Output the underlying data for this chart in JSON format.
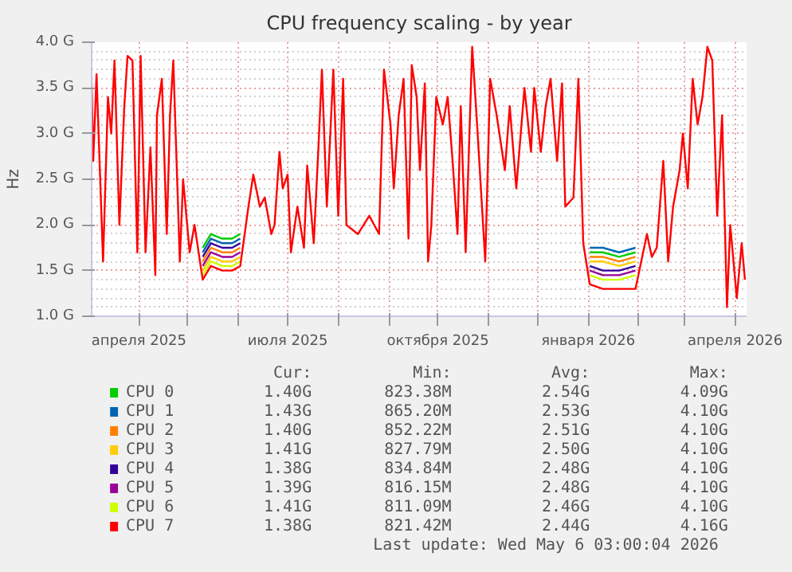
{
  "chart_data": {
    "type": "line",
    "title": "CPU frequency scaling - by year",
    "ylabel": "Hz",
    "legend": "bottom",
    "grid": true,
    "line_style": "solid",
    "xlim": [
      "2025-03-03",
      "2026-04-08"
    ],
    "xticks": [
      {
        "value": "2025-04-01",
        "label": "апреля 2025"
      },
      {
        "value": "2025-05-01",
        "label": null
      },
      {
        "value": "2025-06-01",
        "label": null
      },
      {
        "value": "2025-07-01",
        "label": "июля 2025"
      },
      {
        "value": "2025-08-01",
        "label": null
      },
      {
        "value": "2025-09-01",
        "label": null
      },
      {
        "value": "2025-10-01",
        "label": "октября 2025"
      },
      {
        "value": "2025-11-01",
        "label": null
      },
      {
        "value": "2025-12-01",
        "label": null
      },
      {
        "value": "2026-01-01",
        "label": "января 2026"
      },
      {
        "value": "2026-02-01",
        "label": null
      },
      {
        "value": "2026-03-01",
        "label": null
      },
      {
        "value": "2026-04-01",
        "label": "апреля 2026"
      }
    ],
    "ylim": [
      1.0,
      4.0
    ],
    "yticks": [
      {
        "value": 1.0,
        "label": "1.0 G"
      },
      {
        "value": 1.5,
        "label": "1.5 G"
      },
      {
        "value": 2.0,
        "label": "2.0 G"
      },
      {
        "value": 2.5,
        "label": "2.5 G"
      },
      {
        "value": 3.0,
        "label": "3.0 G"
      },
      {
        "value": 3.5,
        "label": "3.5 G"
      },
      {
        "value": 4.0,
        "label": "4.0 G"
      }
    ],
    "x": [
      "2025-03-03",
      "2025-03-04",
      "2025-03-06",
      "2025-03-10",
      "2025-03-13",
      "2025-03-15",
      "2025-03-17",
      "2025-03-20",
      "2025-03-23",
      "2025-03-25",
      "2025-03-28",
      "2025-03-31",
      "2025-04-02",
      "2025-04-05",
      "2025-04-08",
      "2025-04-11",
      "2025-04-12",
      "2025-04-15",
      "2025-04-18",
      "2025-04-20",
      "2025-04-22",
      "2025-04-26",
      "2025-04-28",
      "2025-05-02",
      "2025-05-05",
      "2025-05-10",
      "2025-05-15",
      "2025-05-22",
      "2025-05-28",
      "2025-06-02",
      "2025-06-07",
      "2025-06-10",
      "2025-06-14",
      "2025-06-17",
      "2025-06-21",
      "2025-06-23",
      "2025-06-26",
      "2025-06-28",
      "2025-07-01",
      "2025-07-03",
      "2025-07-07",
      "2025-07-11",
      "2025-07-13",
      "2025-07-17",
      "2025-07-20",
      "2025-07-22",
      "2025-07-25",
      "2025-07-29",
      "2025-08-01",
      "2025-08-04",
      "2025-08-06",
      "2025-08-13",
      "2025-08-20",
      "2025-08-26",
      "2025-08-29",
      "2025-09-02",
      "2025-09-04",
      "2025-09-07",
      "2025-09-10",
      "2025-09-13",
      "2025-09-15",
      "2025-09-18",
      "2025-09-20",
      "2025-09-23",
      "2025-09-25",
      "2025-09-27",
      "2025-09-30",
      "2025-10-04",
      "2025-10-07",
      "2025-10-10",
      "2025-10-13",
      "2025-10-15",
      "2025-10-18",
      "2025-10-22",
      "2025-10-25",
      "2025-10-30",
      "2025-11-02",
      "2025-11-06",
      "2025-11-11",
      "2025-11-14",
      "2025-11-18",
      "2025-11-23",
      "2025-11-27",
      "2025-11-29",
      "2025-12-03",
      "2025-12-06",
      "2025-12-09",
      "2025-12-13",
      "2025-12-16",
      "2025-12-18",
      "2025-12-23",
      "2025-12-26",
      "2025-12-29",
      "2026-01-02",
      "2026-01-10",
      "2026-01-20",
      "2026-01-30",
      "2026-02-06",
      "2026-02-09",
      "2026-02-12",
      "2026-02-16",
      "2026-02-19",
      "2026-02-22",
      "2026-02-26",
      "2026-02-28",
      "2026-03-03",
      "2026-03-06",
      "2026-03-09",
      "2026-03-12",
      "2026-03-15",
      "2026-03-18",
      "2026-03-21",
      "2026-03-24",
      "2026-03-27",
      "2026-03-29",
      "2026-04-02",
      "2026-04-05",
      "2026-04-07"
    ],
    "series": [
      {
        "name": "CPU 0",
        "color": "#00cc00",
        "x": [
          "2025-05-10",
          "2025-05-15",
          "2025-05-22",
          "2025-05-28",
          "2025-06-02",
          "2025-09-01",
          "2026-01-02",
          "2026-01-10",
          "2026-01-20",
          "2026-01-30"
        ],
        "values": [
          1.75,
          1.9,
          1.85,
          1.85,
          1.9,
          null,
          1.7,
          1.7,
          1.65,
          1.7
        ]
      },
      {
        "name": "CPU 1",
        "color": "#0066b3",
        "x": [
          "2025-05-10",
          "2025-05-15",
          "2025-05-22",
          "2025-05-28",
          "2025-06-02",
          "2025-09-01",
          "2026-01-02",
          "2026-01-10",
          "2026-01-20",
          "2026-01-30"
        ],
        "values": [
          1.7,
          1.85,
          1.8,
          1.8,
          1.85,
          null,
          1.75,
          1.75,
          1.7,
          1.75
        ]
      },
      {
        "name": "CPU 2",
        "color": "#ff8000",
        "x": [
          "2025-05-10",
          "2025-05-15",
          "2025-05-22",
          "2025-05-28",
          "2025-06-02",
          "2025-09-01",
          "2026-01-02",
          "2026-01-10",
          "2026-01-20",
          "2026-01-30"
        ],
        "values": [
          1.6,
          1.75,
          1.7,
          1.7,
          1.75,
          null,
          1.65,
          1.65,
          1.6,
          1.65
        ]
      },
      {
        "name": "CPU 3",
        "color": "#ffcc00",
        "x": [
          "2025-05-10",
          "2025-05-15",
          "2025-05-22",
          "2025-05-28",
          "2025-06-02",
          "2025-09-01",
          "2026-01-02",
          "2026-01-10",
          "2026-01-20",
          "2026-01-30"
        ],
        "values": [
          1.5,
          1.65,
          1.6,
          1.6,
          1.65,
          null,
          1.6,
          1.6,
          1.55,
          1.6
        ]
      },
      {
        "name": "CPU 4",
        "color": "#330099",
        "x": [
          "2025-05-10",
          "2025-05-15",
          "2025-05-22",
          "2025-05-28",
          "2025-06-02",
          "2025-09-01",
          "2026-01-02",
          "2026-01-10",
          "2026-01-20",
          "2026-01-30"
        ],
        "values": [
          1.65,
          1.8,
          1.75,
          1.75,
          1.8,
          null,
          1.55,
          1.5,
          1.5,
          1.55
        ]
      },
      {
        "name": "CPU 5",
        "color": "#990099",
        "x": [
          "2025-05-10",
          "2025-05-15",
          "2025-05-22",
          "2025-05-28",
          "2025-06-02",
          "2025-09-01",
          "2026-01-02",
          "2026-01-10",
          "2026-01-20",
          "2026-01-30"
        ],
        "values": [
          1.55,
          1.7,
          1.65,
          1.65,
          1.7,
          null,
          1.5,
          1.45,
          1.45,
          1.5
        ]
      },
      {
        "name": "CPU 6",
        "color": "#ccff00",
        "x": [
          "2025-05-10",
          "2025-05-15",
          "2025-05-22",
          "2025-05-28",
          "2025-06-02",
          "2025-09-01",
          "2026-01-02",
          "2026-01-10",
          "2026-01-20",
          "2026-01-30"
        ],
        "values": [
          1.45,
          1.6,
          1.55,
          1.55,
          1.6,
          null,
          1.45,
          1.4,
          1.4,
          1.45
        ]
      },
      {
        "name": "CPU 7",
        "color": "#ff0000",
        "values": [
          3.55,
          2.7,
          3.65,
          1.6,
          3.4,
          3.0,
          3.8,
          2.0,
          3.3,
          3.85,
          3.8,
          1.7,
          3.85,
          1.7,
          2.85,
          1.45,
          3.2,
          3.6,
          1.9,
          3.2,
          3.8,
          1.6,
          2.5,
          1.7,
          2.0,
          1.4,
          1.55,
          1.5,
          1.5,
          1.55,
          2.2,
          2.55,
          2.2,
          2.3,
          1.9,
          2.0,
          2.8,
          2.4,
          2.55,
          1.7,
          2.2,
          1.75,
          2.65,
          1.8,
          2.9,
          3.7,
          2.2,
          3.7,
          2.1,
          3.6,
          2.0,
          1.9,
          2.1,
          1.9,
          3.7,
          3.1,
          2.4,
          3.2,
          3.6,
          1.85,
          3.75,
          3.4,
          2.6,
          3.55,
          1.6,
          2.0,
          3.4,
          3.1,
          3.4,
          2.7,
          1.9,
          3.3,
          1.7,
          3.95,
          3.1,
          1.6,
          3.6,
          3.2,
          2.6,
          3.3,
          2.4,
          3.5,
          2.8,
          3.5,
          2.8,
          3.3,
          3.6,
          2.7,
          3.55,
          2.2,
          2.3,
          3.6,
          1.8,
          1.35,
          1.3,
          1.3,
          1.3,
          1.9,
          1.65,
          1.75,
          2.7,
          1.6,
          2.2,
          2.6,
          3.0,
          2.4,
          3.6,
          3.1,
          3.4,
          3.95,
          3.8,
          2.1,
          3.2,
          1.1,
          2.0,
          1.2,
          1.8,
          1.4
        ]
      }
    ],
    "annotations": [
      "Cur:",
      "Min:",
      "Avg:",
      "Max:",
      "1.40G",
      "823.38M",
      "2.54G",
      "4.09G",
      "1.43G",
      "865.20M",
      "2.53G",
      "4.10G",
      "1.40G",
      "852.22M",
      "2.51G",
      "4.10G",
      "1.41G",
      "827.79M",
      "2.50G",
      "4.10G",
      "1.38G",
      "834.84M",
      "2.48G",
      "4.10G",
      "1.39G",
      "816.15M",
      "2.48G",
      "4.10G",
      "1.41G",
      "811.09M",
      "2.46G",
      "4.10G",
      "1.38G",
      "821.42M",
      "2.44G",
      "4.16G",
      "Last update: Wed May  6 03:00:04 2026"
    ]
  }
}
